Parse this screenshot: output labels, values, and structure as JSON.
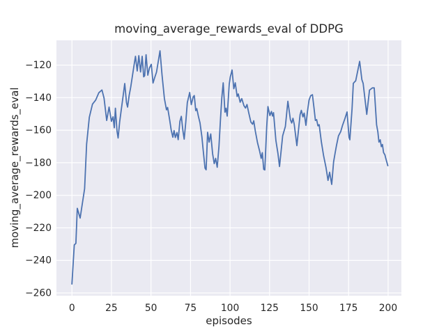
{
  "figure": {
    "title": "moving_average_rewards_eval of DDPG",
    "xlabel": "episodes",
    "ylabel": "moving_average_rewards_eval"
  },
  "chart_data": {
    "type": "line",
    "title": "moving_average_rewards_eval of DDPG",
    "xlabel": "episodes",
    "ylabel": "moving_average_rewards_eval",
    "legend": "none",
    "grid": "on",
    "style": "seaborn-darkgrid",
    "line_color": "#4c72b0",
    "axes_background": "#eaeaf2",
    "grid_color": "#ffffff",
    "text_color": "#262626",
    "xlim": [
      -9.8,
      208.4
    ],
    "ylim": [
      -261.7,
      -104.8
    ],
    "xticks": {
      "values": [
        0,
        25,
        50,
        75,
        100,
        125,
        150,
        175,
        200
      ],
      "labels": [
        "0",
        "25",
        "50",
        "75",
        "100",
        "125",
        "150",
        "175",
        "200"
      ]
    },
    "yticks": {
      "values": [
        -120,
        -140,
        -160,
        -180,
        -200,
        -220,
        -240,
        -260
      ],
      "labels": [
        "−120",
        "−140",
        "−160",
        "−180",
        "−200",
        "−220",
        "−240",
        "−260"
      ]
    },
    "points": [
      [
        0,
        -254.5
      ],
      [
        1.5,
        -230.5
      ],
      [
        2.5,
        -229.5
      ],
      [
        3.4,
        -208
      ],
      [
        5.2,
        -214
      ],
      [
        8,
        -196
      ],
      [
        9.3,
        -168.5
      ],
      [
        11,
        -152
      ],
      [
        13,
        -144
      ],
      [
        15,
        -141.5
      ],
      [
        17,
        -137
      ],
      [
        19,
        -135.3
      ],
      [
        20.3,
        -140.3
      ],
      [
        22,
        -154
      ],
      [
        23.5,
        -145.8
      ],
      [
        25,
        -154.5
      ],
      [
        26,
        -151.8
      ],
      [
        26.8,
        -158.5
      ],
      [
        27.5,
        -146.5
      ],
      [
        28.5,
        -160.5
      ],
      [
        29.2,
        -164.8
      ],
      [
        30.2,
        -155
      ],
      [
        31.2,
        -147.5
      ],
      [
        32.3,
        -139.5
      ],
      [
        33.4,
        -131.3
      ],
      [
        34.5,
        -143
      ],
      [
        35.2,
        -145.8
      ],
      [
        36.2,
        -138.5
      ],
      [
        37.2,
        -133.5
      ],
      [
        38.2,
        -127
      ],
      [
        39.2,
        -120.5
      ],
      [
        40.2,
        -114.6
      ],
      [
        41.3,
        -123.6
      ],
      [
        42.3,
        -114.2
      ],
      [
        43.4,
        -124.2
      ],
      [
        44.4,
        -114.6
      ],
      [
        45.4,
        -127.2
      ],
      [
        46,
        -126.5
      ],
      [
        46.9,
        -113.6
      ],
      [
        48,
        -126.2
      ],
      [
        49,
        -121.8
      ],
      [
        50.2,
        -119.5
      ],
      [
        51.3,
        -131
      ],
      [
        52.4,
        -127.5
      ],
      [
        53.5,
        -124.3
      ],
      [
        55.7,
        -111.2
      ],
      [
        57,
        -126
      ],
      [
        58.5,
        -140.5
      ],
      [
        59.8,
        -147.5
      ],
      [
        60.5,
        -146
      ],
      [
        61.8,
        -153.5
      ],
      [
        62.8,
        -160
      ],
      [
        63.8,
        -164.3
      ],
      [
        64.6,
        -160.2
      ],
      [
        65.4,
        -164.5
      ],
      [
        66.4,
        -161.5
      ],
      [
        67.2,
        -165.8
      ],
      [
        68.3,
        -154.5
      ],
      [
        69.2,
        -151.5
      ],
      [
        70.2,
        -160.5
      ],
      [
        71,
        -165.5
      ],
      [
        72,
        -155
      ],
      [
        73,
        -143
      ],
      [
        74.5,
        -136.8
      ],
      [
        75.5,
        -144.3
      ],
      [
        76.7,
        -139.5
      ],
      [
        77.4,
        -138.7
      ],
      [
        78.3,
        -148
      ],
      [
        79,
        -146.8
      ],
      [
        80,
        -151.5
      ],
      [
        81,
        -155.5
      ],
      [
        82.2,
        -164
      ],
      [
        83,
        -172
      ],
      [
        84.2,
        -183.3
      ],
      [
        84.9,
        -184.3
      ],
      [
        85.8,
        -161.3
      ],
      [
        86.8,
        -167.3
      ],
      [
        87.8,
        -162.3
      ],
      [
        89,
        -174.5
      ],
      [
        90,
        -180.5
      ],
      [
        90.9,
        -177.3
      ],
      [
        91.9,
        -182.8
      ],
      [
        93,
        -170
      ],
      [
        94,
        -152.5
      ],
      [
        94.8,
        -140
      ],
      [
        95.7,
        -130.9
      ],
      [
        96.8,
        -148.9
      ],
      [
        97.5,
        -146.5
      ],
      [
        98.2,
        -151.3
      ],
      [
        99.5,
        -131.5
      ],
      [
        100.2,
        -127.2
      ],
      [
        101.3,
        -123
      ],
      [
        102.4,
        -134.5
      ],
      [
        103.3,
        -130.9
      ],
      [
        104.5,
        -139.3
      ],
      [
        105.2,
        -137.7
      ],
      [
        106.4,
        -142.8
      ],
      [
        107.4,
        -140.6
      ],
      [
        108.8,
        -145
      ],
      [
        109.8,
        -146.4
      ],
      [
        110.7,
        -144.2
      ],
      [
        111.8,
        -149.2
      ],
      [
        113.2,
        -155
      ],
      [
        114.3,
        -156.3
      ],
      [
        115,
        -154.2
      ],
      [
        116,
        -160.6
      ],
      [
        117.4,
        -167.8
      ],
      [
        118.6,
        -172.4
      ],
      [
        119.7,
        -177.3
      ],
      [
        120.4,
        -173.8
      ],
      [
        121.3,
        -184
      ],
      [
        122,
        -184.4
      ],
      [
        123.2,
        -158
      ],
      [
        124,
        -145.5
      ],
      [
        125.2,
        -151
      ],
      [
        126.2,
        -148.5
      ],
      [
        126.9,
        -151.3
      ],
      [
        127.5,
        -149.2
      ],
      [
        129,
        -166.3
      ],
      [
        130.3,
        -174.2
      ],
      [
        131.3,
        -182.3
      ],
      [
        133.3,
        -163.5
      ],
      [
        135,
        -157.7
      ],
      [
        136.6,
        -142.2
      ],
      [
        138.2,
        -153.5
      ],
      [
        139,
        -155.6
      ],
      [
        139.8,
        -152.7
      ],
      [
        140.6,
        -156.3
      ],
      [
        142.3,
        -169.5
      ],
      [
        144.3,
        -150.5
      ],
      [
        145.1,
        -147.8
      ],
      [
        146.1,
        -151.8
      ],
      [
        146.9,
        -149.5
      ],
      [
        148,
        -157
      ],
      [
        149,
        -148.5
      ],
      [
        150,
        -141.5
      ],
      [
        151,
        -138.8
      ],
      [
        152.1,
        -138.2
      ],
      [
        153.1,
        -146
      ],
      [
        154,
        -154
      ],
      [
        154.8,
        -153.5
      ],
      [
        155.6,
        -157.3
      ],
      [
        156.4,
        -156.6
      ],
      [
        157.8,
        -167.3
      ],
      [
        159.2,
        -175.8
      ],
      [
        160.7,
        -182.9
      ],
      [
        162,
        -190.8
      ],
      [
        163,
        -185.8
      ],
      [
        164.3,
        -193.3
      ],
      [
        165.5,
        -179.5
      ],
      [
        166.5,
        -174
      ],
      [
        167.3,
        -169.5
      ],
      [
        168.6,
        -163.5
      ],
      [
        170,
        -160.9
      ],
      [
        171.2,
        -156.9
      ],
      [
        172.7,
        -152.8
      ],
      [
        174,
        -148.8
      ],
      [
        175.3,
        -164.5
      ],
      [
        175.8,
        -165.9
      ],
      [
        177.2,
        -146.8
      ],
      [
        178,
        -131.2
      ],
      [
        178.8,
        -130.3
      ],
      [
        179.5,
        -129.7
      ],
      [
        182,
        -117.7
      ],
      [
        183.4,
        -129
      ],
      [
        184.2,
        -131.2
      ],
      [
        186.5,
        -150.3
      ],
      [
        188.2,
        -135.4
      ],
      [
        190,
        -134
      ],
      [
        191.2,
        -134
      ],
      [
        192.7,
        -156.7
      ],
      [
        193.5,
        -161
      ],
      [
        194.2,
        -167.3
      ],
      [
        195,
        -165.9
      ],
      [
        195.7,
        -170.1
      ],
      [
        196.4,
        -168.8
      ],
      [
        197.1,
        -173.7
      ],
      [
        198,
        -175.2
      ],
      [
        198.5,
        -177.2
      ],
      [
        199.8,
        -181.8
      ]
    ]
  }
}
